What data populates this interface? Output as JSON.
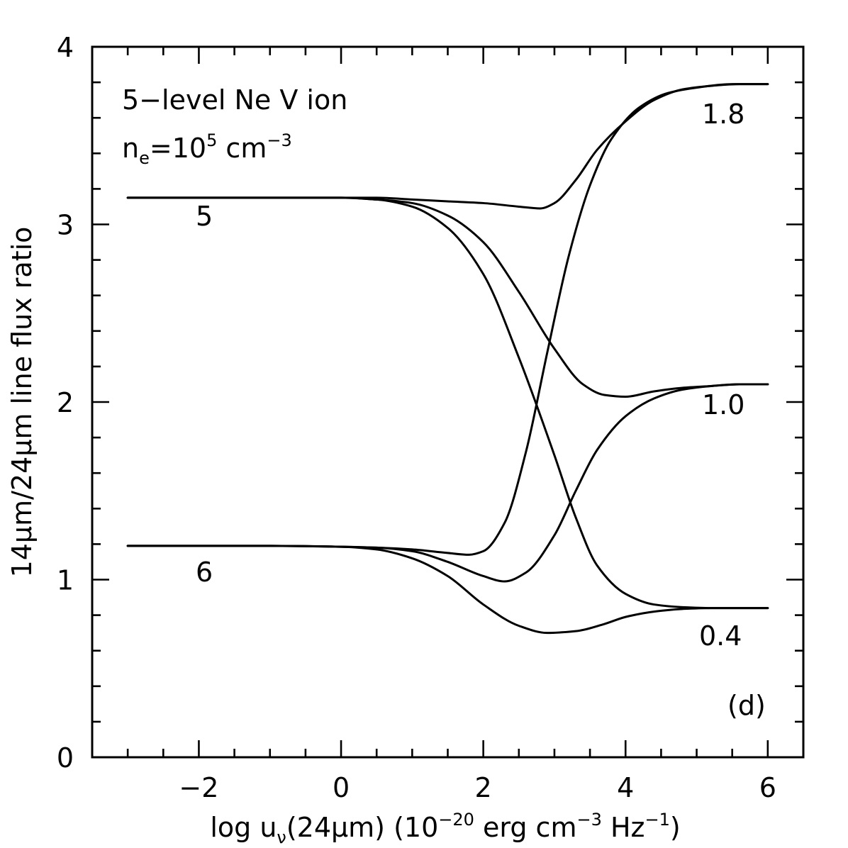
{
  "chart_data": {
    "type": "line",
    "title": "",
    "xlabel": {
      "prefix": "log u",
      "sub": "ν",
      "mid": "(24μm) (10",
      "sup1": "−20",
      "mid2": " erg cm",
      "sup2": "−3",
      "mid3": " Hz",
      "sup3": "−1",
      "suffix": ")"
    },
    "ylabel": "14μm/24μm line flux ratio",
    "xlim": [
      -3.5,
      6.5
    ],
    "ylim": [
      0,
      4
    ],
    "xticks": [
      "−2",
      "0",
      "2",
      "4",
      "6"
    ],
    "xtick_values": [
      -2,
      0,
      2,
      4,
      6
    ],
    "yticks": [
      "0",
      "1",
      "2",
      "3",
      "4"
    ],
    "ytick_values": [
      0,
      1,
      2,
      3,
      4
    ],
    "grid": false,
    "annotations": {
      "ion": "5−level Ne V ion",
      "density_prefix": "n",
      "density_sub": "e",
      "density_mid": "=10",
      "density_sup": "5",
      "density_unit": " cm",
      "density_unit_sup": "−3",
      "panel": "(d)",
      "label_5": "5",
      "label_6": "6",
      "label_18": "1.8",
      "label_10": "1.0",
      "label_04": "0.4"
    },
    "series": [
      {
        "x": [
          -3,
          -1,
          0,
          0.5,
          1,
          1.5,
          2,
          2.5,
          2.8,
          3,
          3.3,
          3.6,
          4,
          4.4,
          4.8,
          5.2,
          5.6,
          6
        ],
        "y": [
          3.15,
          3.15,
          3.15,
          3.15,
          3.14,
          3.13,
          3.12,
          3.1,
          3.09,
          3.12,
          3.25,
          3.42,
          3.58,
          3.7,
          3.76,
          3.78,
          3.79,
          3.79
        ]
      },
      {
        "x": [
          -3,
          -1,
          0,
          0.5,
          1,
          1.5,
          2,
          2.5,
          3,
          3.4,
          3.7,
          4,
          4.4,
          4.8,
          5.2,
          5.6,
          6
        ],
        "y": [
          3.15,
          3.15,
          3.15,
          3.14,
          3.12,
          3.05,
          2.9,
          2.62,
          2.3,
          2.1,
          2.04,
          2.03,
          2.06,
          2.08,
          2.09,
          2.1,
          2.1
        ]
      },
      {
        "x": [
          -3,
          -1,
          0,
          0.5,
          1,
          1.5,
          2,
          2.5,
          3,
          3.3,
          3.6,
          4,
          4.4,
          4.8,
          5.2,
          5.6,
          6
        ],
        "y": [
          3.15,
          3.15,
          3.15,
          3.14,
          3.1,
          2.98,
          2.72,
          2.25,
          1.7,
          1.35,
          1.08,
          0.92,
          0.86,
          0.845,
          0.84,
          0.84,
          0.84
        ]
      },
      {
        "x": [
          -3,
          -1,
          0,
          0.5,
          1,
          1.5,
          1.8,
          2,
          2.3,
          2.6,
          2.9,
          3.2,
          3.5,
          3.8,
          4.2,
          4.6,
          5,
          5.5,
          6
        ],
        "y": [
          1.19,
          1.19,
          1.185,
          1.18,
          1.17,
          1.15,
          1.14,
          1.16,
          1.32,
          1.72,
          2.28,
          2.82,
          3.22,
          3.48,
          3.66,
          3.74,
          3.77,
          3.79,
          3.79
        ]
      },
      {
        "x": [
          -3,
          -1,
          0,
          0.5,
          1,
          1.5,
          2,
          2.3,
          2.6,
          3,
          3.3,
          3.6,
          4,
          4.4,
          4.8,
          5.2,
          5.6,
          6
        ],
        "y": [
          1.19,
          1.19,
          1.185,
          1.18,
          1.16,
          1.1,
          1.02,
          0.99,
          1.04,
          1.25,
          1.5,
          1.73,
          1.92,
          2.02,
          2.07,
          2.09,
          2.1,
          2.1
        ]
      },
      {
        "x": [
          -3,
          -1,
          0,
          0.5,
          1,
          1.5,
          2,
          2.5,
          2.9,
          3.3,
          3.7,
          4,
          4.4,
          4.8,
          5.2,
          5.6,
          6
        ],
        "y": [
          1.19,
          1.19,
          1.185,
          1.17,
          1.12,
          1.02,
          0.86,
          0.74,
          0.7,
          0.71,
          0.75,
          0.79,
          0.82,
          0.835,
          0.84,
          0.84,
          0.84
        ]
      }
    ]
  }
}
